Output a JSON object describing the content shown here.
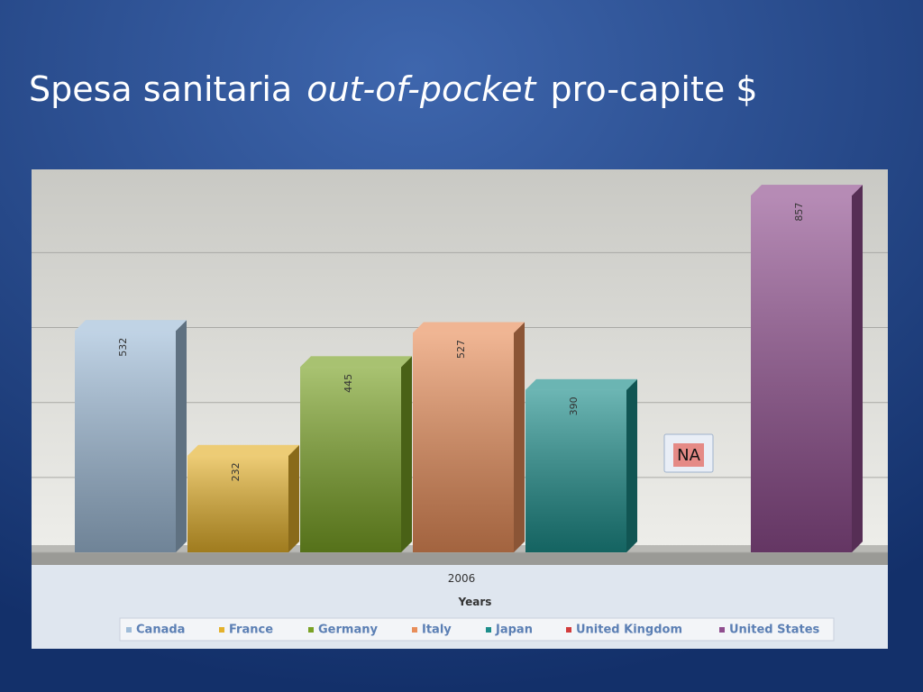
{
  "chart_data": {
    "type": "bar",
    "title_parts": [
      "Spesa sanitaria",
      "out-of-pocket",
      "pro-capite $"
    ],
    "categories": [
      "2006"
    ],
    "x_label": "Years",
    "series": [
      {
        "name": "Canada",
        "color": "#9fbcd8",
        "values": [
          532
        ],
        "value_labels": [
          "532"
        ]
      },
      {
        "name": "France",
        "color": "#e4b12c",
        "values": [
          232
        ],
        "value_labels": [
          "232"
        ]
      },
      {
        "name": "Germany",
        "color": "#7aa225",
        "values": [
          445
        ],
        "value_labels": [
          "445"
        ]
      },
      {
        "name": "Italy",
        "color": "#e88e5a",
        "values": [
          527
        ],
        "value_labels": [
          "527"
        ]
      },
      {
        "name": "Japan",
        "color": "#1d8e8b",
        "values": [
          390
        ],
        "value_labels": [
          "390"
        ]
      },
      {
        "name": "United Kingdom",
        "color": "#d23c3c",
        "values": [
          null
        ],
        "value_labels": [
          "NA"
        ]
      },
      {
        "name": "United States",
        "color": "#8f4d8e",
        "values": [
          857
        ],
        "value_labels": [
          "857"
        ]
      }
    ],
    "ylim": [
      0,
      920
    ],
    "yticks": [
      0,
      180,
      360,
      540,
      720
    ],
    "grid": true,
    "legend": "bottom"
  }
}
